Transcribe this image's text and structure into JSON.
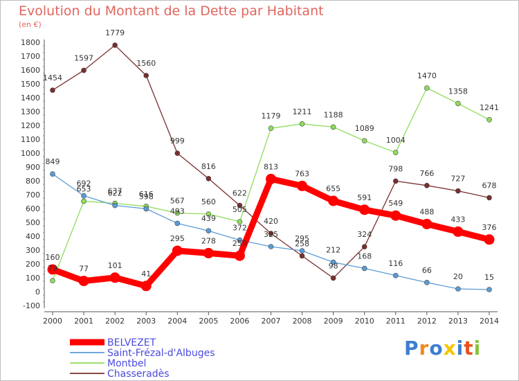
{
  "chart_data": {
    "type": "line",
    "title": "Evolution du Montant de la Dette par Habitant",
    "subtitle": "(en €)",
    "x": [
      "2000",
      "2001",
      "2002",
      "2003",
      "2004",
      "2005",
      "2006",
      "2007",
      "2008",
      "2009",
      "2010",
      "2011",
      "2012",
      "2013",
      "2014"
    ],
    "y_ticks": [
      "-100",
      "0",
      "100",
      "200",
      "300",
      "400",
      "500",
      "600",
      "700",
      "800",
      "900",
      "1000",
      "1100",
      "1200",
      "1300",
      "1400",
      "1500",
      "1600",
      "1700",
      "1800"
    ],
    "ylim": [
      -100,
      1800
    ],
    "grid": false,
    "legend_position": "bottom-left",
    "series": [
      {
        "name": "BELVEZET",
        "color": "#ff0000",
        "values": [
          160,
          77,
          101,
          41,
          295,
          278,
          259,
          813,
          763,
          655,
          591,
          549,
          488,
          433,
          376
        ]
      },
      {
        "name": "Saint-Frézal-d'Albuges",
        "color": "#5b9bd5",
        "values": [
          849,
          692,
          622,
          598,
          493,
          439,
          372,
          325,
          295,
          212,
          168,
          116,
          66,
          20,
          15
        ]
      },
      {
        "name": "Montbel",
        "color": "#8fdc5c",
        "values": [
          79,
          653,
          637,
          616,
          567,
          560,
          505,
          1179,
          1211,
          1188,
          1089,
          1004,
          1470,
          1358,
          1241
        ]
      },
      {
        "name": "Chasseradès",
        "color": "#7a2e2e",
        "values": [
          1454,
          1597,
          1779,
          1560,
          999,
          816,
          622,
          420,
          258,
          98,
          324,
          798,
          766,
          727,
          678
        ]
      }
    ]
  },
  "logo": {
    "letters": [
      "P",
      "r",
      "o",
      "x",
      "i",
      "t",
      "i"
    ],
    "colors": [
      "#3d7fd1",
      "#f08a1c",
      "#3d7fd1",
      "#f5c400",
      "#3d7fd1",
      "#e8521f",
      "#86c33a"
    ]
  }
}
